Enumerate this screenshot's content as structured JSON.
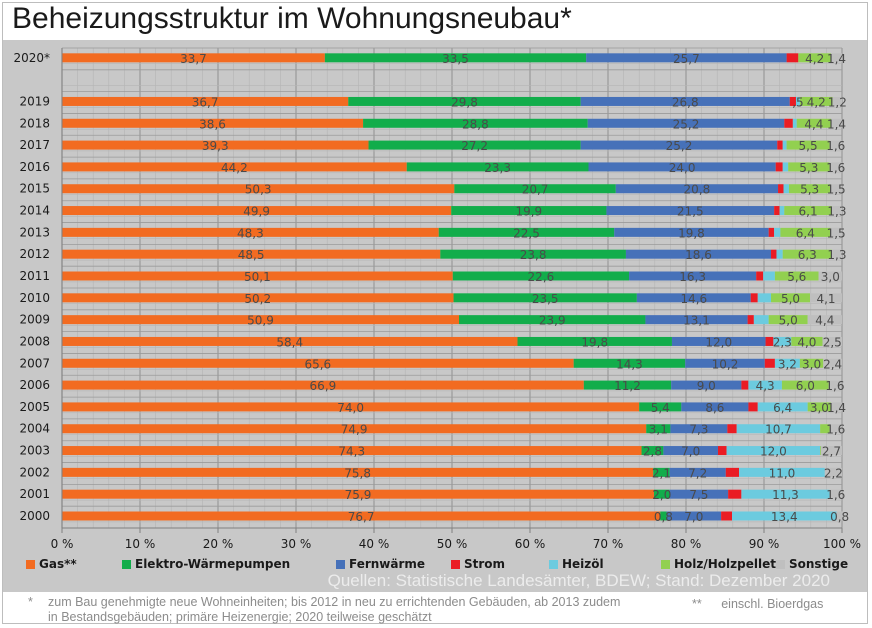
{
  "title": "Beheizungsstruktur im Wohnungsneubau*",
  "source": "Quellen: Statistische Landesämter, BDEW; Stand: Dezember 2020",
  "footnotes": {
    "star_mark": "*",
    "star_line1": "zum Bau genehmigte neue Wohneinheiten; bis 2012 in neu zu errichtenden Gebäuden, ab 2013 zudem",
    "star_line2": "in Bestandsgebäuden; primäre Heizenergie; 2020 teilweise geschätzt",
    "double_star_mark": "**",
    "double_star_text": "einschl. Bioerdgas"
  },
  "chart_data": {
    "type": "bar",
    "orientation": "horizontal",
    "stacked": "percent",
    "title": "Beheizungsstruktur im Wohnungsneubau*",
    "xlabel": "",
    "ylabel": "",
    "xlim": [
      0,
      100
    ],
    "x_ticks": [
      "0 %",
      "10 %",
      "20 %",
      "30 %",
      "40 %",
      "50 %",
      "60 %",
      "70 %",
      "80 %",
      "90 %",
      "100 %"
    ],
    "grid": true,
    "legend_position": "bottom",
    "categories": [
      "2020*",
      "",
      "2019",
      "2018",
      "2017",
      "2016",
      "2015",
      "2014",
      "2013",
      "2012",
      "2011",
      "2010",
      "2009",
      "2008",
      "2007",
      "2006",
      "2005",
      "2004",
      "2003",
      "2002",
      "2001",
      "2000"
    ],
    "series": [
      {
        "name": "Gas**",
        "color": "#f26b21",
        "values": [
          33.7,
          null,
          36.7,
          38.6,
          39.3,
          44.2,
          50.3,
          49.9,
          48.3,
          48.5,
          50.1,
          50.2,
          50.9,
          58.4,
          65.6,
          66.9,
          74.0,
          74.9,
          74.3,
          75.8,
          75.9,
          76.7
        ],
        "labels": [
          "33,7",
          "",
          "36,7",
          "38,6",
          "39,3",
          "44,2",
          "50,3",
          "49,9",
          "48,3",
          "48,5",
          "50,1",
          "50,2",
          "50,9",
          "58,4",
          "65,6",
          "66,9",
          "74,0",
          "74,9",
          "74,3",
          "75,8",
          "75,9",
          "76,7"
        ]
      },
      {
        "name": "Elektro-Wärmepumpen",
        "color": "#12ad4b",
        "values": [
          33.5,
          null,
          29.8,
          28.8,
          27.2,
          23.3,
          20.7,
          19.9,
          22.5,
          23.8,
          22.6,
          23.5,
          23.9,
          19.8,
          14.3,
          11.2,
          5.4,
          3.1,
          2.8,
          2.1,
          2.0,
          0.8
        ],
        "labels": [
          "33,5",
          "",
          "29,8",
          "28,8",
          "27,2",
          "23,3",
          "20,7",
          "19,9",
          "22,5",
          "23,8",
          "22,6",
          "23,5",
          "23,9",
          "19,8",
          "14,3",
          "11,2",
          "5,4",
          "3,1",
          "2,8",
          "2,1",
          "2,0",
          "0,8"
        ]
      },
      {
        "name": "Fernwärme",
        "color": "#4671b9",
        "values": [
          25.7,
          null,
          26.8,
          25.2,
          25.2,
          24.0,
          20.8,
          21.5,
          19.8,
          18.6,
          16.3,
          14.6,
          13.1,
          12.0,
          10.2,
          9.0,
          8.6,
          7.3,
          7.0,
          7.2,
          7.5,
          7.0
        ],
        "labels": [
          "25,7",
          "",
          "26,8",
          "25,2",
          "25,2",
          "24,0",
          "20,8",
          "21,5",
          "19,8",
          "18,6",
          "16,3",
          "14,6",
          "13,1",
          "12,0",
          "10,2",
          "9,0",
          "8,6",
          "7,3",
          "7,0",
          "7,2",
          "7,5",
          "7,0"
        ]
      },
      {
        "name": "Strom",
        "color": "#ea1c24",
        "values": [
          1.5,
          null,
          0.8,
          1.1,
          0.7,
          0.9,
          0.7,
          0.7,
          0.7,
          0.7,
          0.9,
          0.9,
          0.8,
          1.0,
          1.3,
          0.9,
          1.2,
          1.2,
          1.1,
          1.7,
          1.7,
          1.4
        ],
        "labels": [
          "",
          "",
          "",
          "",
          "",
          "",
          "",
          "",
          "",
          "",
          "",
          "",
          "",
          "",
          "",
          "",
          "",
          "",
          "",
          "",
          "",
          ""
        ]
      },
      {
        "name": "Heizöl",
        "color": "#6ccbdf",
        "values": [
          0.0,
          null,
          0.5,
          0.5,
          0.5,
          0.7,
          0.7,
          0.6,
          0.8,
          0.8,
          1.5,
          1.7,
          1.9,
          2.3,
          3.2,
          4.3,
          6.4,
          10.7,
          12.0,
          11.0,
          11.3,
          13.4
        ],
        "labels": [
          "",
          "",
          ",5",
          "",
          "",
          "",
          "",
          "",
          "",
          "",
          "",
          "",
          "",
          "2,3",
          "3,2",
          "4,3",
          "6,4",
          "10,7",
          "12,0",
          "11,0",
          "11,3",
          "13,4"
        ]
      },
      {
        "name": "Holz/Holzpellets",
        "color": "#92d050",
        "values": [
          4.2,
          null,
          4.2,
          4.4,
          5.5,
          5.3,
          5.3,
          6.1,
          6.4,
          6.3,
          5.6,
          5.0,
          5.0,
          4.0,
          3.0,
          6.0,
          3.0,
          1.2,
          0.1,
          0.0,
          0.0,
          0.0
        ],
        "labels": [
          "4,2",
          "",
          "4,2",
          "4,4",
          "5,5",
          "5,3",
          "5,3",
          "6,1",
          "6,4",
          "6,3",
          "5,6",
          "5,0",
          "5,0",
          "4,0",
          "3,0",
          "6,0",
          "3,0",
          "",
          "",
          "",
          "",
          ""
        ]
      },
      {
        "name": "Sonstige",
        "color": "#bfbfbf",
        "values": [
          1.4,
          null,
          1.2,
          1.4,
          1.6,
          1.6,
          1.5,
          1.3,
          1.5,
          1.3,
          3.0,
          4.1,
          4.4,
          2.5,
          2.4,
          1.6,
          1.4,
          1.6,
          2.7,
          2.2,
          1.6,
          0.8
        ],
        "labels": [
          "1,4",
          "",
          "1,2",
          "1,4",
          "1,6",
          "1,6",
          "1,5",
          "1,3",
          "1,5",
          "1,3",
          "3,0",
          "4,1",
          "4,4",
          "2,5",
          "2,4",
          "1,6",
          "1,4",
          "1,6",
          "2,7",
          "2,2",
          "1,6",
          "0,8"
        ]
      }
    ]
  }
}
